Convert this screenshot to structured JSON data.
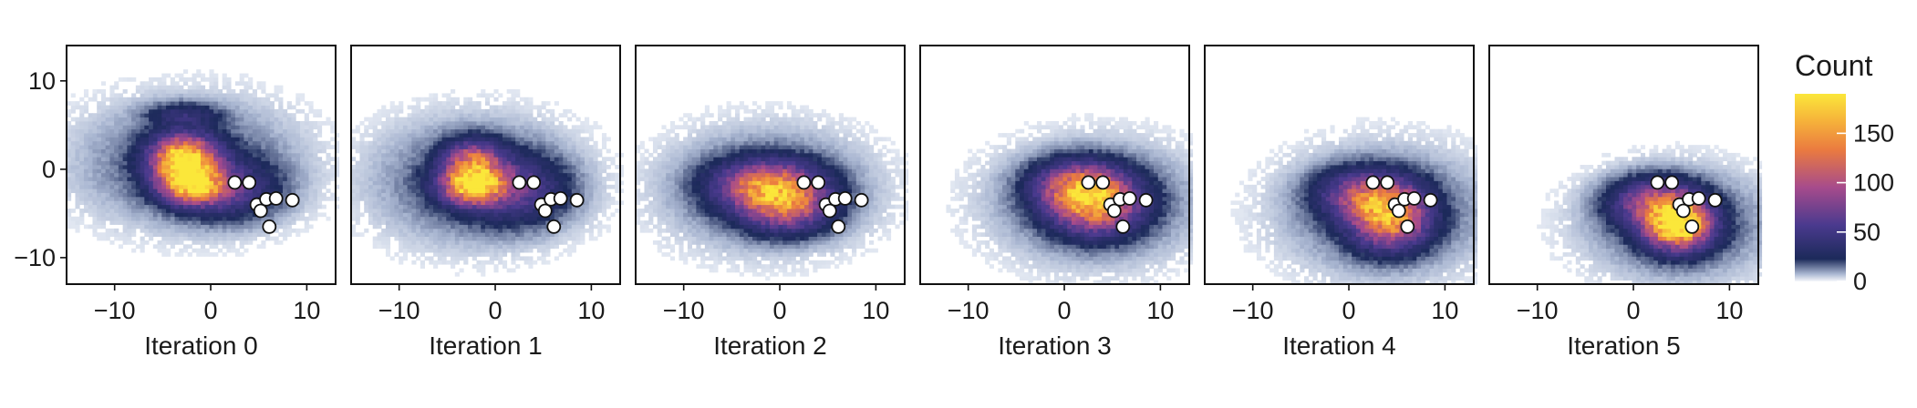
{
  "chart_data": {
    "type": "heatmap",
    "description_axes": "six 2D density panels sharing x and y axes",
    "xlim": [
      -15,
      13
    ],
    "ylim": [
      -13,
      14
    ],
    "x_ticks": [
      -10,
      0,
      10
    ],
    "y_ticks": [
      10,
      0,
      -10
    ],
    "x_tick_labels": [
      "−10",
      "0",
      "10"
    ],
    "y_tick_labels": [
      "10",
      "0",
      "−10"
    ],
    "legend": {
      "title": "Count",
      "placement": "right",
      "range": [
        0,
        190
      ],
      "ticks": [
        0,
        50,
        100,
        150
      ],
      "colors": [
        "#f5f7fb",
        "#1c2a5a",
        "#5a3a8e",
        "#b04a8a",
        "#ec7a3f",
        "#f7b73a",
        "#fbe73a"
      ]
    },
    "reference_points": [
      {
        "x": 2.5,
        "y": -1.5
      },
      {
        "x": 4.0,
        "y": -1.5
      },
      {
        "x": 4.8,
        "y": -4.0
      },
      {
        "x": 5.2,
        "y": -4.7
      },
      {
        "x": 5.8,
        "y": -3.4
      },
      {
        "x": 6.1,
        "y": -6.5
      },
      {
        "x": 6.8,
        "y": -3.3
      },
      {
        "x": 8.5,
        "y": -3.5
      }
    ],
    "panels": [
      {
        "label": "Iteration 0",
        "peak_count": 190,
        "peak": [
          -2.5,
          0.5
        ],
        "spread": [
          6.5,
          4.0
        ],
        "blobs": [
          {
            "x": -3.0,
            "y": 0.8,
            "sx": 2.2,
            "sy": 1.8,
            "w": 1.0
          },
          {
            "x": -2.0,
            "y": -2.2,
            "sx": 2.2,
            "sy": 1.3,
            "w": 0.65
          },
          {
            "x": 1.5,
            "y": -2.5,
            "sx": 3.5,
            "sy": 2.2,
            "w": 0.25
          },
          {
            "x": -3.0,
            "y": 6.0,
            "sx": 2.5,
            "sy": 0.9,
            "w": 0.15
          }
        ]
      },
      {
        "label": "Iteration 1",
        "peak_count": 160,
        "peak": [
          -2.5,
          -1.5
        ],
        "spread": [
          6.0,
          4.0
        ],
        "blobs": [
          {
            "x": -2.5,
            "y": -2.0,
            "sx": 2.2,
            "sy": 1.4,
            "w": 1.0
          },
          {
            "x": -2.5,
            "y": 0.8,
            "sx": 2.0,
            "sy": 1.5,
            "w": 0.6
          },
          {
            "x": 2.0,
            "y": -2.5,
            "sx": 3.5,
            "sy": 2.5,
            "w": 0.3
          }
        ]
      },
      {
        "label": "Iteration 2",
        "peak_count": 130,
        "peak": [
          -1.5,
          -2.5
        ],
        "spread": [
          6.0,
          3.8
        ],
        "blobs": [
          {
            "x": -1.5,
            "y": -2.0,
            "sx": 3.5,
            "sy": 1.8,
            "w": 0.9
          },
          {
            "x": 0.5,
            "y": -4.5,
            "sx": 3.0,
            "sy": 1.8,
            "w": 0.7
          }
        ]
      },
      {
        "label": "Iteration 3",
        "peak_count": 130,
        "peak": [
          3.0,
          -4.0
        ],
        "spread": [
          6.0,
          3.8
        ],
        "blobs": [
          {
            "x": 3.0,
            "y": -4.0,
            "sx": 3.0,
            "sy": 2.2,
            "w": 1.0
          },
          {
            "x": 1.0,
            "y": -2.0,
            "sx": 3.0,
            "sy": 1.8,
            "w": 0.6
          }
        ]
      },
      {
        "label": "Iteration 4",
        "peak_count": 140,
        "peak": [
          3.5,
          -5.0
        ],
        "spread": [
          6.0,
          4.0
        ],
        "blobs": [
          {
            "x": 4.0,
            "y": -5.5,
            "sx": 2.6,
            "sy": 2.3,
            "w": 1.0
          },
          {
            "x": 1.0,
            "y": -3.0,
            "sx": 3.0,
            "sy": 1.8,
            "w": 0.5
          }
        ]
      },
      {
        "label": "Iteration 5",
        "peak_count": 185,
        "peak": [
          4.5,
          -6.5
        ],
        "spread": [
          5.5,
          3.5
        ],
        "blobs": [
          {
            "x": 4.5,
            "y": -6.5,
            "sx": 2.2,
            "sy": 1.8,
            "w": 1.0
          },
          {
            "x": 2.0,
            "y": -4.0,
            "sx": 3.0,
            "sy": 1.8,
            "w": 0.45
          }
        ]
      }
    ]
  }
}
